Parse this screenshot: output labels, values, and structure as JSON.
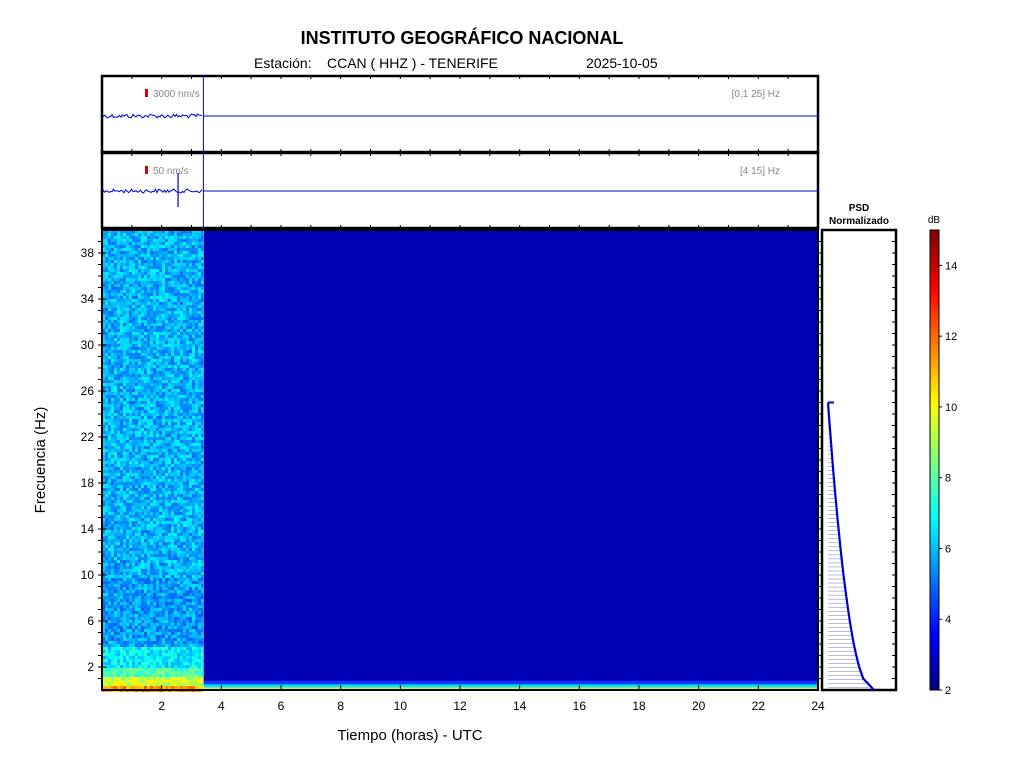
{
  "header": {
    "title": "INSTITUTO GEOGRÁFICO NACIONAL",
    "station_label": "Estación:",
    "station": "CCAN ( HHZ ) - TENERIFE",
    "date": "2025-10-05"
  },
  "chart_data": [
    {
      "type": "line",
      "panel": "seismogram-broadband",
      "scale_label": "3000 nm/s",
      "band_label": "[0.1 25] Hz",
      "data_end_hour": 3.4,
      "colors": {
        "trace": "#0000cc",
        "scale_bar": "#dd0000",
        "label": "#888888"
      }
    },
    {
      "type": "line",
      "panel": "seismogram-filtered",
      "scale_label": "50 nm/s",
      "band_label": "[4 15] Hz",
      "data_end_hour": 3.4,
      "event_hour": 2.55,
      "colors": {
        "trace": "#0000cc",
        "scale_bar": "#dd0000",
        "label": "#888888"
      }
    },
    {
      "type": "heatmap",
      "panel": "spectrogram",
      "xlabel": "Tiempo (horas) - UTC",
      "ylabel": "Frecuencia  (Hz)",
      "xlim": [
        0,
        24
      ],
      "ylim": [
        0,
        40
      ],
      "xticks": [
        2,
        4,
        6,
        8,
        10,
        12,
        14,
        16,
        18,
        20,
        22,
        24
      ],
      "yticks": [
        2,
        6,
        10,
        14,
        18,
        22,
        26,
        30,
        34,
        38
      ],
      "data_end_hour": 3.4,
      "note": "after 3.4 h values are at floor (2 dB) except a thin band near 0-1 Hz"
    },
    {
      "type": "line",
      "panel": "psd",
      "title_line1": "PSD",
      "title_line2": "Normalizado",
      "freq": [
        0,
        1,
        2,
        3,
        4,
        5,
        6,
        7,
        8,
        9,
        10,
        11,
        12,
        13,
        14,
        15,
        16,
        17,
        18,
        19,
        20,
        21,
        22,
        23,
        24,
        25
      ],
      "psd": [
        1.0,
        0.88,
        0.74,
        0.62,
        0.52,
        0.43,
        0.36,
        0.3,
        0.26,
        0.22,
        0.19,
        0.165,
        0.145,
        0.125,
        0.11,
        0.095,
        0.08,
        0.07,
        0.06,
        0.05,
        0.043,
        0.036,
        0.03,
        0.025,
        0.02,
        0.015
      ]
    },
    {
      "type": "heatmap",
      "panel": "colorbar",
      "label": "dB",
      "range": [
        2,
        15
      ],
      "ticks": [
        2,
        4,
        6,
        8,
        10,
        12,
        14
      ]
    }
  ]
}
